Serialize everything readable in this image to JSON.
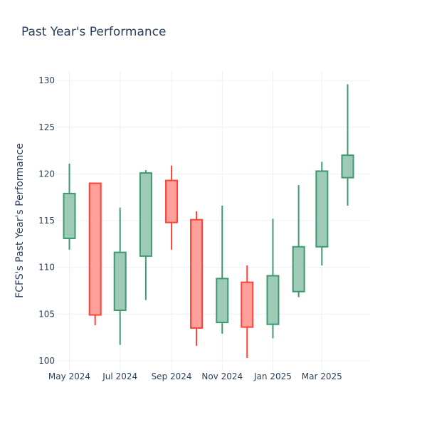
{
  "chart_data": {
    "type": "candlestick",
    "title": "Past Year's Performance",
    "ylabel": "FCFS's Past Year's Performance",
    "xlabel": "",
    "ylim": [
      99,
      131
    ],
    "yticks": [
      100,
      105,
      110,
      115,
      120,
      125,
      130
    ],
    "xticks": [
      {
        "date": "2024-05-01",
        "label": "May 2024"
      },
      {
        "date": "2024-07-01",
        "label": "Jul 2024"
      },
      {
        "date": "2024-09-01",
        "label": "Sep 2024"
      },
      {
        "date": "2024-11-01",
        "label": "Nov 2024"
      },
      {
        "date": "2025-01-01",
        "label": "Jan 2025"
      },
      {
        "date": "2025-03-01",
        "label": "Mar 2025"
      }
    ],
    "xrange": [
      "2024-04-16",
      "2025-04-28"
    ],
    "grid": true,
    "colors": {
      "increasing": "#3d9970",
      "decreasing": "#ff4136",
      "increasing_fill": "#9ecab8",
      "decreasing_fill": "#ffa09a"
    },
    "candles": [
      {
        "date": "2024-05-01",
        "open": 113.1,
        "high": 121.1,
        "low": 111.9,
        "close": 117.9
      },
      {
        "date": "2024-06-01",
        "open": 119.0,
        "high": 119.0,
        "low": 103.8,
        "close": 104.9
      },
      {
        "date": "2024-07-01",
        "open": 105.4,
        "high": 116.4,
        "low": 101.7,
        "close": 111.6
      },
      {
        "date": "2024-08-01",
        "open": 111.2,
        "high": 120.4,
        "low": 106.5,
        "close": 120.1
      },
      {
        "date": "2024-09-01",
        "open": 119.3,
        "high": 120.9,
        "low": 111.9,
        "close": 114.8
      },
      {
        "date": "2024-10-01",
        "open": 115.1,
        "high": 116.0,
        "low": 101.6,
        "close": 103.5
      },
      {
        "date": "2024-11-01",
        "open": 104.1,
        "high": 116.6,
        "low": 102.9,
        "close": 108.8
      },
      {
        "date": "2024-12-01",
        "open": 108.4,
        "high": 110.2,
        "low": 100.3,
        "close": 103.6
      },
      {
        "date": "2025-01-01",
        "open": 103.9,
        "high": 115.2,
        "low": 102.4,
        "close": 109.1
      },
      {
        "date": "2025-02-01",
        "open": 107.4,
        "high": 118.8,
        "low": 106.8,
        "close": 112.2
      },
      {
        "date": "2025-03-01",
        "open": 112.2,
        "high": 121.3,
        "low": 110.2,
        "close": 120.3
      },
      {
        "date": "2025-04-01",
        "open": 119.6,
        "high": 129.6,
        "low": 116.6,
        "close": 122.0
      }
    ]
  }
}
